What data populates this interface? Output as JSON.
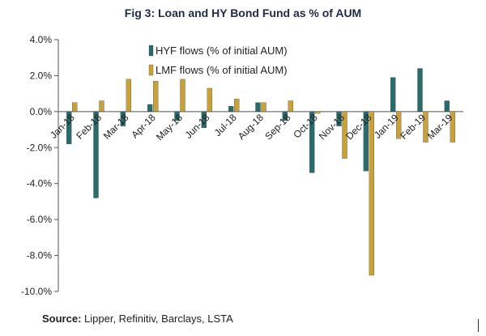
{
  "source": {
    "label": "Source:",
    "text": " Lipper, Refinitiv, Barclays, LSTA"
  },
  "chart_data": {
    "type": "bar",
    "title": "Fig 3: Loan and HY Bond Fund as % of AUM",
    "xlabel": "",
    "ylabel": "",
    "categories": [
      "Jan-18",
      "Feb-18",
      "Mar-18",
      "Apr-18",
      "May-18",
      "Jun-18",
      "Jul-18",
      "Aug-18",
      "Sep-18",
      "Oct-18",
      "Nov-18",
      "Dec-18",
      "Jan-19",
      "Feb-19",
      "Mar-19"
    ],
    "series": [
      {
        "name": "HYF flows (% of initial AUM)",
        "color": "#2a6b6b",
        "values": [
          -1.8,
          -4.8,
          -0.8,
          0.4,
          -0.5,
          -0.9,
          0.3,
          0.5,
          -0.5,
          -3.4,
          -0.8,
          -3.3,
          1.9,
          2.4,
          0.6
        ]
      },
      {
        "name": "LMF flows (% of initial AUM)",
        "color": "#c9a13b",
        "values": [
          0.5,
          0.6,
          1.8,
          1.7,
          1.8,
          1.3,
          0.7,
          0.5,
          0.6,
          -0.1,
          -2.6,
          -9.1,
          -1.5,
          -1.7,
          -1.7
        ]
      }
    ],
    "ylim": [
      -10,
      4
    ],
    "yticks": [
      4,
      2,
      0,
      -2,
      -4,
      -6,
      -8,
      -10
    ],
    "ytick_labels": [
      "4.0%",
      "2.0%",
      "0.0%",
      "-2.0%",
      "-4.0%",
      "-6.0%",
      "-8.0%",
      "-10.0%"
    ],
    "grid": false,
    "legend_position": "top-center"
  }
}
